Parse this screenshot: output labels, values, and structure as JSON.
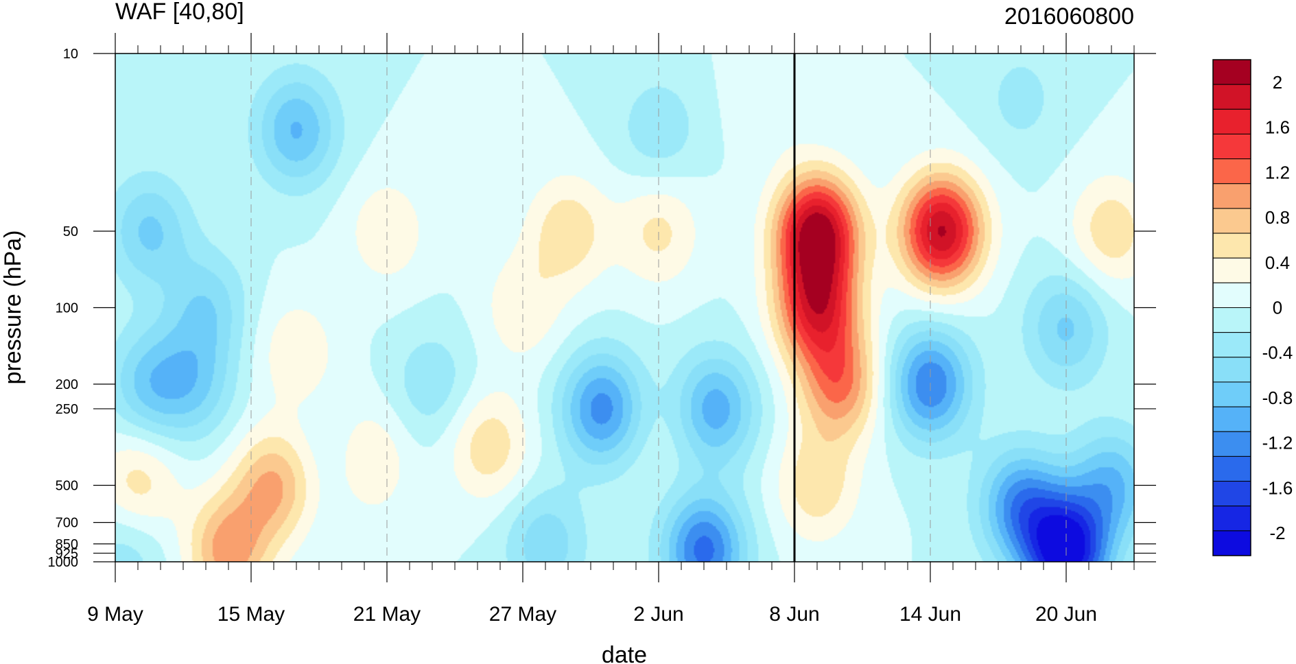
{
  "chart_data": {
    "type": "heatmap",
    "title": "WAF [40,80]",
    "subtitle": "2016060800",
    "xlabel": "date",
    "ylabel": "pressure (hPa)",
    "x_tick_labels": [
      "9 May",
      "15 May",
      "21 May",
      "27 May",
      "2 Jun",
      "8 Jun",
      "14 Jun",
      "20 Jun"
    ],
    "x_tick_day_index": [
      0,
      6,
      12,
      18,
      24,
      30,
      36,
      42
    ],
    "x_range_days": [
      0,
      45
    ],
    "y_tick_labels": [
      "10",
      "50",
      "100",
      "200",
      "250",
      "500",
      "700",
      "850",
      "925",
      "1000"
    ],
    "y_tick_values": [
      10,
      50,
      100,
      200,
      250,
      500,
      700,
      850,
      925,
      1000
    ],
    "y_range": [
      10,
      1000
    ],
    "y_scale": "log",
    "y_inverted": true,
    "analysis_date_day_index": 30,
    "colorbar": {
      "labels": [
        "2",
        "1.6",
        "1.2",
        "0.8",
        "0.4",
        "0",
        "-0.4",
        "-0.8",
        "-1.2",
        "-1.6",
        "-2"
      ],
      "label_values": [
        2,
        1.6,
        1.2,
        0.8,
        0.4,
        0,
        -0.4,
        -0.8,
        -1.2,
        -1.6,
        -2
      ],
      "range": [
        -2.2,
        2.2
      ],
      "colors": [
        "#a50021",
        "#d11327",
        "#e8212d",
        "#f5383a",
        "#fb6649",
        "#f9a06e",
        "#fbc98f",
        "#fde7ad",
        "#fefae6",
        "#e2fdfd",
        "#b9f5f9",
        "#9be9f9",
        "#89dff8",
        "#6fcdf9",
        "#55b2f8",
        "#3c8ef0",
        "#2a6aec",
        "#2046e6",
        "#1626e4",
        "#0d0be0"
      ]
    },
    "features": [
      {
        "day": 31,
        "p": 50,
        "value": 2.1
      },
      {
        "day": 36.5,
        "p": 50,
        "value": 2.0
      },
      {
        "day": 31,
        "p": 100,
        "value": 1.6
      },
      {
        "day": 32,
        "p": 200,
        "value": 1.1
      },
      {
        "day": 40,
        "p": 15,
        "value": -0.3
      },
      {
        "day": 44,
        "p": 50,
        "value": 0.6
      },
      {
        "day": 20,
        "p": 50,
        "value": 0.6
      },
      {
        "day": 24,
        "p": 50,
        "value": 0.5
      },
      {
        "day": 21.5,
        "p": 250,
        "value": -1.2
      },
      {
        "day": 26.5,
        "p": 250,
        "value": -1.0
      },
      {
        "day": 26,
        "p": 900,
        "value": -1.4
      },
      {
        "day": 36,
        "p": 200,
        "value": -1.3
      },
      {
        "day": 42,
        "p": 920,
        "value": -2.2
      },
      {
        "day": 40,
        "p": 600,
        "value": -1.2
      },
      {
        "day": 44,
        "p": 500,
        "value": -0.9
      },
      {
        "day": 42,
        "p": 120,
        "value": -0.7
      },
      {
        "day": 24,
        "p": 300,
        "value": 0.1
      },
      {
        "day": 7,
        "p": 500,
        "value": 0.9
      },
      {
        "day": 5,
        "p": 900,
        "value": 1.0
      },
      {
        "day": 1,
        "p": 500,
        "value": 0.6
      },
      {
        "day": 11,
        "p": 400,
        "value": 0.6
      },
      {
        "day": 16.5,
        "p": 350,
        "value": 0.6
      },
      {
        "day": 31,
        "p": 500,
        "value": 0.6
      },
      {
        "day": 12,
        "p": 50,
        "value": 0.4
      },
      {
        "day": 8,
        "p": 150,
        "value": 0.4
      },
      {
        "day": 18,
        "p": 100,
        "value": 0.4
      },
      {
        "day": 8,
        "p": 20,
        "value": -0.9
      },
      {
        "day": 1.5,
        "p": 50,
        "value": -0.7
      },
      {
        "day": 4,
        "p": 100,
        "value": -0.6
      },
      {
        "day": 1.5,
        "p": 200,
        "value": -0.7
      },
      {
        "day": 3.5,
        "p": 200,
        "value": -0.6
      },
      {
        "day": 10,
        "p": 400,
        "value": -0.3
      },
      {
        "day": 14,
        "p": 200,
        "value": -0.4
      },
      {
        "day": 19,
        "p": 850,
        "value": -0.6
      },
      {
        "day": 24,
        "p": 20,
        "value": -0.4
      },
      {
        "day": 29,
        "p": 15,
        "value": 0.2
      },
      {
        "day": 0.5,
        "p": 900,
        "value": -0.4
      }
    ]
  }
}
